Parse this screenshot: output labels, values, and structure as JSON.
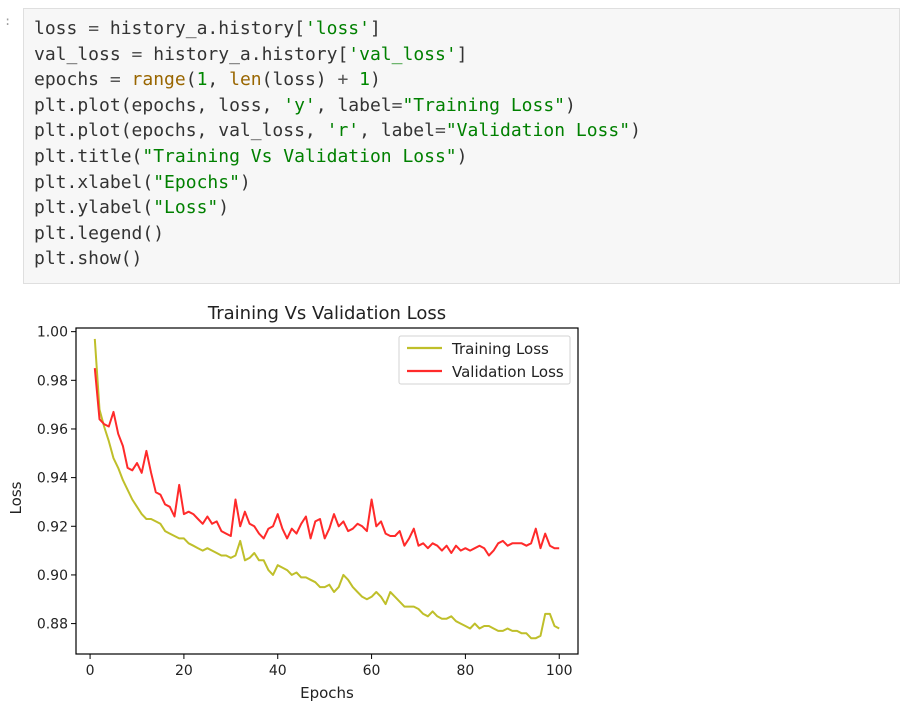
{
  "prompt": ":",
  "code_lines": [
    [
      {
        "t": "loss "
      },
      {
        "t": "=",
        "c": "o"
      },
      {
        "t": " history_a.history["
      },
      {
        "t": "'loss'",
        "c": "s"
      },
      {
        "t": "]"
      }
    ],
    [
      {
        "t": "val_loss "
      },
      {
        "t": "=",
        "c": "o"
      },
      {
        "t": " history_a.history["
      },
      {
        "t": "'val_loss'",
        "c": "s"
      },
      {
        "t": "]"
      }
    ],
    [
      {
        "t": "epochs "
      },
      {
        "t": "=",
        "c": "o"
      },
      {
        "t": " "
      },
      {
        "t": "range",
        "c": "b"
      },
      {
        "t": "("
      },
      {
        "t": "1",
        "c": "n"
      },
      {
        "t": ", "
      },
      {
        "t": "len",
        "c": "b"
      },
      {
        "t": "(loss) "
      },
      {
        "t": "+",
        "c": "o"
      },
      {
        "t": " "
      },
      {
        "t": "1",
        "c": "n"
      },
      {
        "t": ")"
      }
    ],
    [
      {
        "t": "plt.plot(epochs, loss, "
      },
      {
        "t": "'y'",
        "c": "s"
      },
      {
        "t": ", label"
      },
      {
        "t": "=",
        "c": "o"
      },
      {
        "t": "\"Training Loss\"",
        "c": "s"
      },
      {
        "t": ")"
      }
    ],
    [
      {
        "t": "plt.plot(epochs, val_loss, "
      },
      {
        "t": "'r'",
        "c": "s"
      },
      {
        "t": ", label"
      },
      {
        "t": "=",
        "c": "o"
      },
      {
        "t": "\"Validation Loss\"",
        "c": "s"
      },
      {
        "t": ")"
      }
    ],
    [
      {
        "t": "plt.title("
      },
      {
        "t": "\"Training Vs Validation Loss\"",
        "c": "s"
      },
      {
        "t": ")"
      }
    ],
    [
      {
        "t": "plt.xlabel("
      },
      {
        "t": "\"Epochs\"",
        "c": "s"
      },
      {
        "t": ")"
      }
    ],
    [
      {
        "t": "plt.ylabel("
      },
      {
        "t": "\"Loss\"",
        "c": "s"
      },
      {
        "t": ")"
      }
    ],
    [
      {
        "t": "plt.legend()"
      }
    ],
    [
      {
        "t": "plt.show()"
      }
    ]
  ],
  "chart_data": {
    "type": "line",
    "title": "Training Vs Validation Loss",
    "xlabel": "Epochs",
    "ylabel": "Loss",
    "xlim": [
      -3,
      104
    ],
    "ylim": [
      0.8675,
      1.0015
    ],
    "xticks": [
      0,
      20,
      40,
      60,
      80,
      100
    ],
    "yticks": [
      0.88,
      0.9,
      0.92,
      0.94,
      0.96,
      0.98,
      1.0
    ],
    "ytick_labels": [
      "0.88",
      "0.90",
      "0.92",
      "0.94",
      "0.96",
      "0.98",
      "1.00"
    ],
    "legend_position": "upper-right",
    "grid": false,
    "x": [
      1,
      2,
      3,
      4,
      5,
      6,
      7,
      8,
      9,
      10,
      11,
      12,
      13,
      14,
      15,
      16,
      17,
      18,
      19,
      20,
      21,
      22,
      23,
      24,
      25,
      26,
      27,
      28,
      29,
      30,
      31,
      32,
      33,
      34,
      35,
      36,
      37,
      38,
      39,
      40,
      41,
      42,
      43,
      44,
      45,
      46,
      47,
      48,
      49,
      50,
      51,
      52,
      53,
      54,
      55,
      56,
      57,
      58,
      59,
      60,
      61,
      62,
      63,
      64,
      65,
      66,
      67,
      68,
      69,
      70,
      71,
      72,
      73,
      74,
      75,
      76,
      77,
      78,
      79,
      80,
      81,
      82,
      83,
      84,
      85,
      86,
      87,
      88,
      89,
      90,
      91,
      92,
      93,
      94,
      95,
      96,
      97,
      98,
      99,
      100
    ],
    "series": [
      {
        "name": "Training Loss",
        "color": "#bfbf2a",
        "values": [
          0.997,
          0.968,
          0.961,
          0.955,
          0.948,
          0.944,
          0.939,
          0.935,
          0.931,
          0.928,
          0.925,
          0.923,
          0.923,
          0.922,
          0.921,
          0.918,
          0.917,
          0.916,
          0.915,
          0.915,
          0.913,
          0.912,
          0.911,
          0.91,
          0.911,
          0.91,
          0.909,
          0.908,
          0.908,
          0.907,
          0.908,
          0.914,
          0.906,
          0.907,
          0.909,
          0.906,
          0.906,
          0.902,
          0.9,
          0.904,
          0.903,
          0.902,
          0.9,
          0.901,
          0.899,
          0.899,
          0.898,
          0.897,
          0.895,
          0.895,
          0.896,
          0.893,
          0.895,
          0.9,
          0.898,
          0.895,
          0.893,
          0.891,
          0.89,
          0.891,
          0.893,
          0.891,
          0.888,
          0.893,
          0.891,
          0.889,
          0.887,
          0.887,
          0.887,
          0.886,
          0.884,
          0.883,
          0.885,
          0.883,
          0.882,
          0.882,
          0.883,
          0.881,
          0.88,
          0.879,
          0.878,
          0.88,
          0.878,
          0.879,
          0.879,
          0.878,
          0.877,
          0.877,
          0.878,
          0.877,
          0.877,
          0.876,
          0.876,
          0.874,
          0.874,
          0.875,
          0.884,
          0.884,
          0.879,
          0.878
        ]
      },
      {
        "name": "Validation Loss",
        "color": "#ff2a2a",
        "values": [
          0.985,
          0.964,
          0.962,
          0.961,
          0.967,
          0.958,
          0.953,
          0.944,
          0.943,
          0.946,
          0.942,
          0.951,
          0.942,
          0.934,
          0.933,
          0.929,
          0.928,
          0.924,
          0.937,
          0.925,
          0.926,
          0.925,
          0.923,
          0.921,
          0.924,
          0.921,
          0.922,
          0.918,
          0.917,
          0.916,
          0.931,
          0.92,
          0.926,
          0.921,
          0.92,
          0.917,
          0.915,
          0.919,
          0.92,
          0.925,
          0.919,
          0.915,
          0.919,
          0.917,
          0.921,
          0.924,
          0.915,
          0.922,
          0.923,
          0.915,
          0.919,
          0.925,
          0.92,
          0.922,
          0.918,
          0.919,
          0.921,
          0.92,
          0.918,
          0.931,
          0.92,
          0.922,
          0.917,
          0.916,
          0.916,
          0.918,
          0.912,
          0.915,
          0.919,
          0.912,
          0.913,
          0.911,
          0.913,
          0.912,
          0.91,
          0.912,
          0.909,
          0.912,
          0.91,
          0.911,
          0.91,
          0.911,
          0.912,
          0.911,
          0.908,
          0.91,
          0.913,
          0.914,
          0.912,
          0.913,
          0.913,
          0.913,
          0.912,
          0.913,
          0.919,
          0.911,
          0.917,
          0.912,
          0.911,
          0.911
        ]
      }
    ]
  }
}
